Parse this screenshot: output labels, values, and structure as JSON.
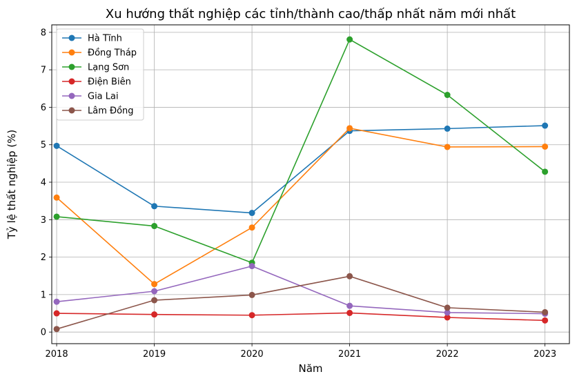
{
  "chart_data": {
    "type": "line",
    "title": "Xu hướng thất nghiệp các tỉnh/thành cao/thấp nhất năm mới nhất",
    "xlabel": "Năm",
    "ylabel": "Tỷ lệ thất nghiệp (%)",
    "x": [
      2018,
      2019,
      2020,
      2021,
      2022,
      2023
    ],
    "xlim": [
      2017.95,
      2023.25
    ],
    "ylim": [
      -0.31,
      8.2
    ],
    "xticks": [
      "2018",
      "2019",
      "2020",
      "2021",
      "2022",
      "2023"
    ],
    "yticks": [
      "0",
      "1",
      "2",
      "3",
      "4",
      "5",
      "6",
      "7",
      "8"
    ],
    "grid": true,
    "legend_position": "top-left",
    "marker": "circle",
    "series": [
      {
        "name": "Hà Tĩnh",
        "color": "#1f77b4",
        "values": [
          4.97,
          3.36,
          3.18,
          5.37,
          5.43,
          5.51
        ]
      },
      {
        "name": "Đồng Tháp",
        "color": "#ff7f0e",
        "values": [
          3.59,
          1.28,
          2.79,
          5.44,
          4.94,
          4.95
        ]
      },
      {
        "name": "Lạng Sơn",
        "color": "#2ca02c",
        "values": [
          3.08,
          2.83,
          1.85,
          7.81,
          6.33,
          4.28
        ]
      },
      {
        "name": "Điện Biên",
        "color": "#d62728",
        "values": [
          0.5,
          0.47,
          0.45,
          0.51,
          0.39,
          0.31
        ]
      },
      {
        "name": "Gia Lai",
        "color": "#9467bd",
        "values": [
          0.81,
          1.09,
          1.76,
          0.7,
          0.52,
          0.49
        ]
      },
      {
        "name": "Lâm Đồng",
        "color": "#8c564b",
        "values": [
          0.08,
          0.85,
          0.99,
          1.49,
          0.65,
          0.53
        ]
      }
    ]
  }
}
